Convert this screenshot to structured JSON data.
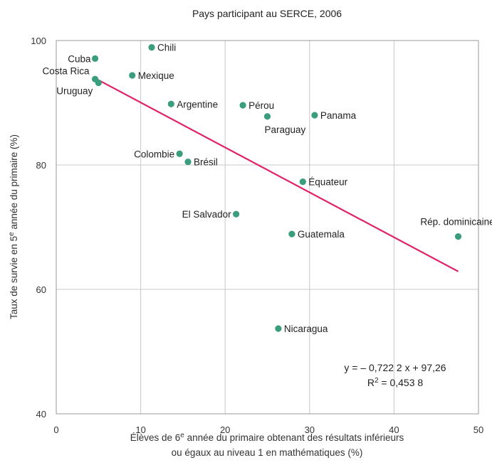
{
  "chart_data": {
    "type": "scatter",
    "title": "Pays participant au SERCE, 2006",
    "xlabel_line1": "Élèves de 6e année du primaire obtenant des résultats inférieurs",
    "xlabel_line2": "ou égaux au niveau 1 en mathématiques (%)",
    "ylabel": "Taux de survie en 5e année du primaire (%)",
    "xlim": [
      0,
      50
    ],
    "ylim": [
      40,
      100
    ],
    "xticks": [
      0,
      10,
      20,
      30,
      40,
      50
    ],
    "yticks": [
      40,
      60,
      80,
      100
    ],
    "grid": true,
    "point_color": "#3a9e7e",
    "trend_color": "#e0226a",
    "points": [
      {
        "label": "Cuba",
        "x": 4.6,
        "y": 97.1
      },
      {
        "label": "Costa Rica",
        "x": 4.6,
        "y": 93.8
      },
      {
        "label": "Uruguay",
        "x": 5.0,
        "y": 93.2
      },
      {
        "label": "Chili",
        "x": 11.3,
        "y": 98.9
      },
      {
        "label": "Mexique",
        "x": 9.0,
        "y": 94.4
      },
      {
        "label": "Argentine",
        "x": 13.6,
        "y": 89.8
      },
      {
        "label": "Pérou",
        "x": 22.1,
        "y": 89.6
      },
      {
        "label": "Paraguay",
        "x": 25.0,
        "y": 87.8
      },
      {
        "label": "Panama",
        "x": 30.6,
        "y": 88.0
      },
      {
        "label": "Colombie",
        "x": 14.6,
        "y": 81.8
      },
      {
        "label": "Brésil",
        "x": 15.6,
        "y": 80.5
      },
      {
        "label": "Équateur",
        "x": 29.2,
        "y": 77.3
      },
      {
        "label": "El Salvador",
        "x": 21.3,
        "y": 72.1
      },
      {
        "label": "Guatemala",
        "x": 27.9,
        "y": 68.9
      },
      {
        "label": "Rép. dominicaine",
        "x": 47.6,
        "y": 68.5
      },
      {
        "label": "Nicaragua",
        "x": 26.3,
        "y": 53.7
      }
    ],
    "trendline": {
      "slope": -0.7222,
      "intercept": 97.26,
      "x_start": 4.6,
      "x_end": 47.6
    },
    "equation_text": "y = – 0,722 2 x + 97,26",
    "r2_text": "R2 = 0,453 8"
  }
}
